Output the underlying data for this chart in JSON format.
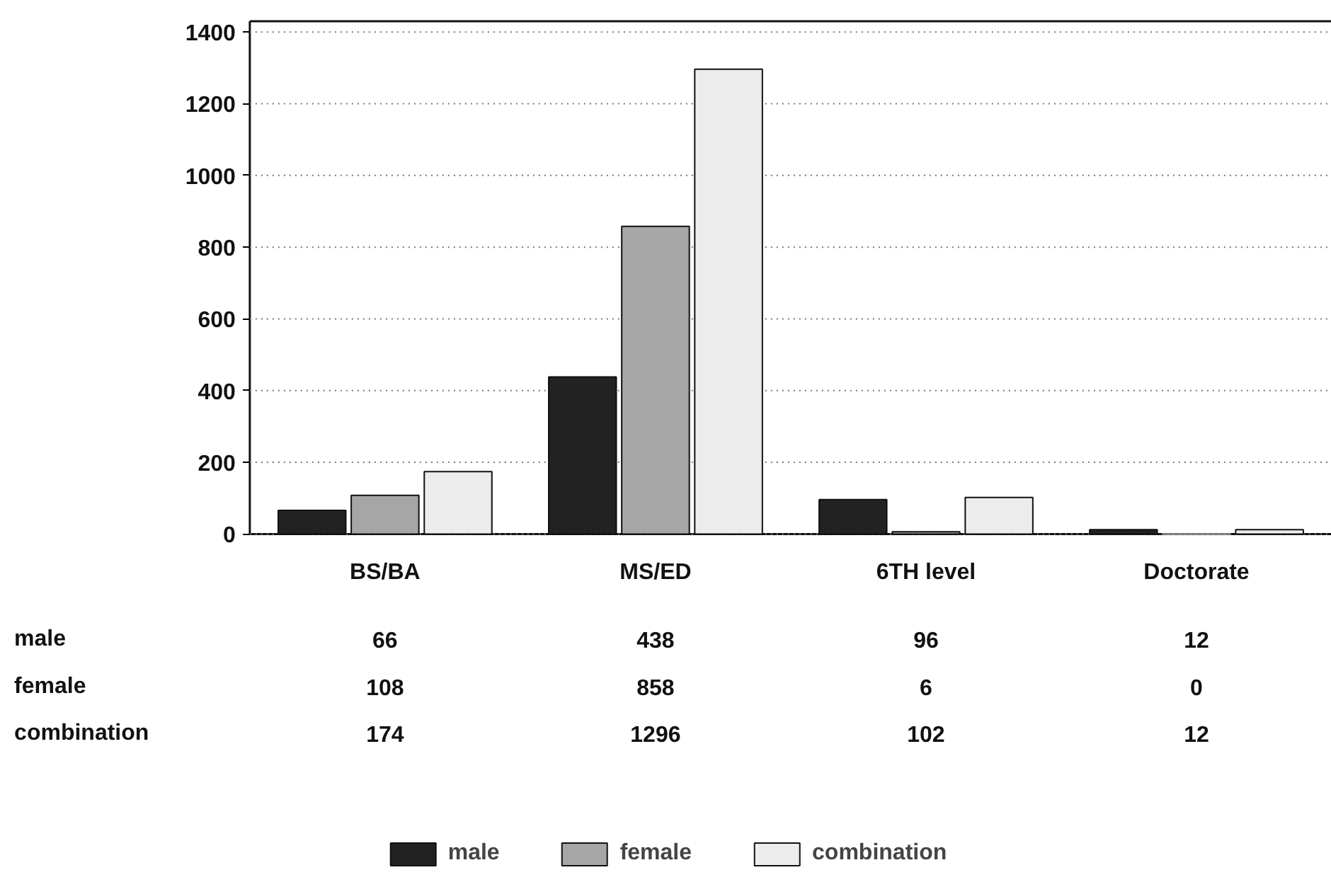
{
  "chart_data": {
    "type": "bar",
    "categories": [
      "BS/BA",
      "MS/ED",
      "6TH level",
      "Doctorate"
    ],
    "series": [
      {
        "name": "male",
        "color": "#222222",
        "values": [
          66,
          438,
          96,
          12
        ]
      },
      {
        "name": "female",
        "color": "#a6a6a6",
        "values": [
          108,
          858,
          6,
          0
        ]
      },
      {
        "name": "combination",
        "color": "#ececec",
        "values": [
          174,
          1296,
          102,
          12
        ]
      }
    ],
    "ylim": [
      0,
      1430
    ],
    "yticks": [
      0,
      200,
      400,
      600,
      800,
      1000,
      1200,
      1400
    ],
    "grid": "y",
    "legend": "bottom",
    "data_labels": true
  }
}
